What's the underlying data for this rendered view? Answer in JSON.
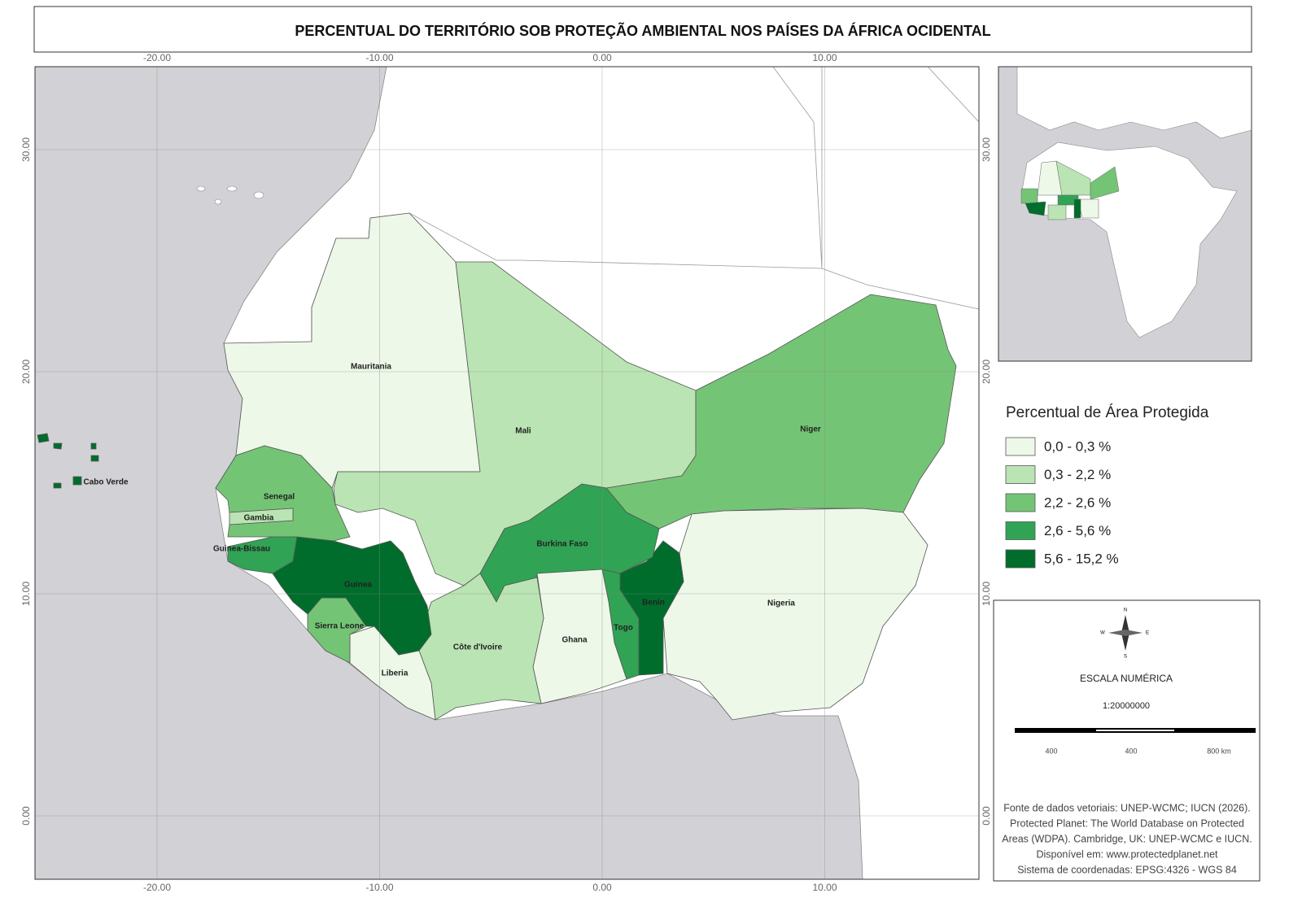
{
  "title": "PERCENTUAL DO TERRITÓRIO SOB PROTEÇÃO AMBIENTAL NOS PAÍSES DA ÁFRICA OCIDENTAL",
  "grid": {
    "longitudes": [
      "-20.00",
      "-10.00",
      "0.00",
      "10.00"
    ],
    "latitudes": [
      "30.00",
      "20.00",
      "10.00",
      "0.00"
    ]
  },
  "countries": [
    {
      "name": "Mauritania",
      "color": "#edf8e9"
    },
    {
      "name": "Mali",
      "color": "#bae4b3"
    },
    {
      "name": "Niger",
      "color": "#74c476"
    },
    {
      "name": "Nigeria",
      "color": "#edf8e9"
    },
    {
      "name": "Benin",
      "color": "#006d2c"
    },
    {
      "name": "Togo",
      "color": "#31a354"
    },
    {
      "name": "Burkina Faso",
      "color": "#31a354"
    },
    {
      "name": "Ghana",
      "color": "#edf8e9"
    },
    {
      "name": "Côte d'Ivoire",
      "color": "#bae4b3"
    },
    {
      "name": "Liberia",
      "color": "#edf8e9"
    },
    {
      "name": "Sierra Leone",
      "color": "#74c476"
    },
    {
      "name": "Guinea",
      "color": "#006d2c"
    },
    {
      "name": "Guinea-Bissau",
      "color": "#31a354"
    },
    {
      "name": "Senegal",
      "color": "#74c476"
    },
    {
      "name": "Gambia",
      "color": "#bae4b3"
    },
    {
      "name": "Cabo Verde",
      "color": "#006d2c"
    }
  ],
  "legend": {
    "title": "Percentual de Área Protegida",
    "classes": [
      {
        "label": "0,0 - 0,3 %",
        "color": "#edf8e9"
      },
      {
        "label": "0,3 - 2,2 %",
        "color": "#bae4b3"
      },
      {
        "label": "2,2 - 2,6 %",
        "color": "#74c476"
      },
      {
        "label": "2,6 - 5,6 %",
        "color": "#31a354"
      },
      {
        "label": "5,6 - 15,2 %",
        "color": "#006d2c"
      }
    ]
  },
  "north_arrow": [
    "N",
    "S",
    "W",
    "E"
  ],
  "scale": {
    "title": "ESCALA NUMÉRICA",
    "ratio": "1:20000000",
    "bar_labels": [
      "400",
      "400",
      "800 km"
    ]
  },
  "source": [
    "Fonte de dados vetoriais: UNEP-WCMC; IUCN (2026).",
    "Protected Planet: The World Database on Protected",
    "Areas (WDPA). Cambridge, UK: UNEP-WCMC e IUCN.",
    "Disponível em: www.protectedplanet.net",
    "Sistema de coordenadas: EPSG:4326 - WGS 84"
  ]
}
